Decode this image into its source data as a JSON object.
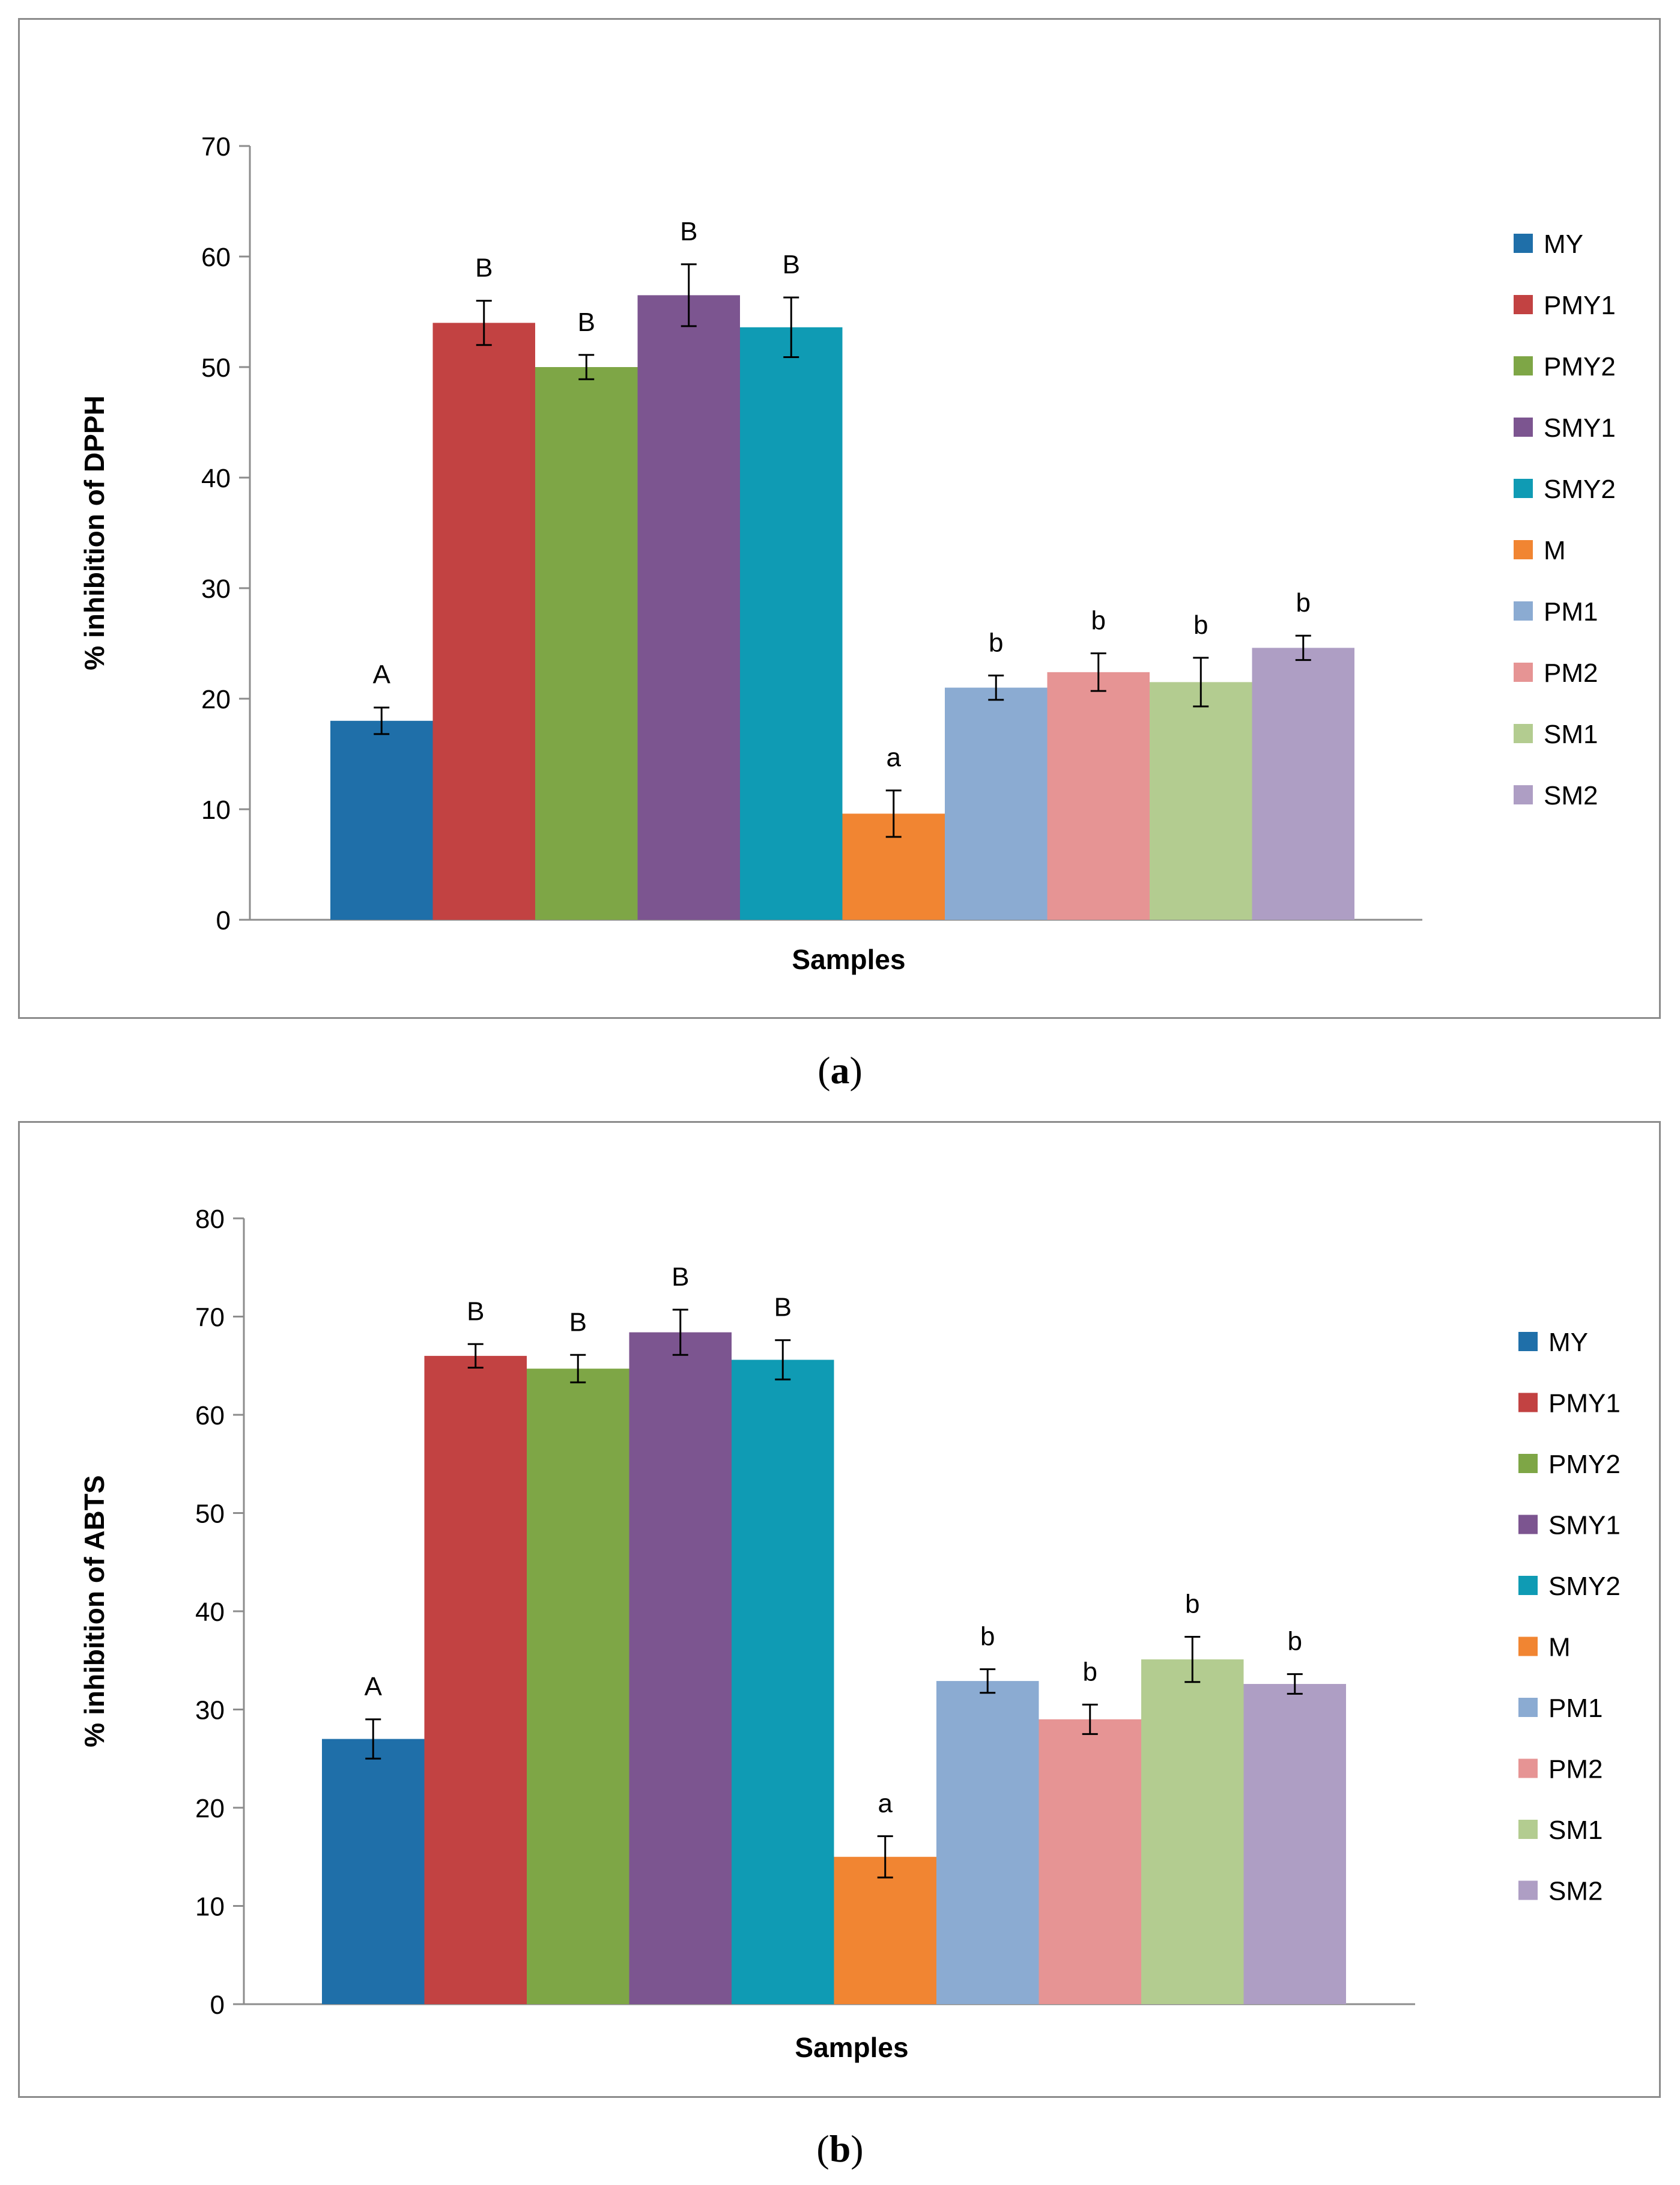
{
  "captions": [
    {
      "open": "(",
      "letter": "a",
      "close": ")"
    },
    {
      "open": "(",
      "letter": "b",
      "close": ")"
    }
  ],
  "chart_data": [
    {
      "type": "bar",
      "title": "",
      "xlabel": "Samples",
      "ylabel": "% inhibition of DPPH",
      "ylim": [
        0,
        70
      ],
      "yticks": [
        0,
        10,
        20,
        30,
        40,
        50,
        60,
        70
      ],
      "grid": false,
      "legend_position": "right",
      "categories": [
        "MY",
        "PMY1",
        "PMY2",
        "SMY1",
        "SMY2",
        "M",
        "PM1",
        "PM2",
        "SM1",
        "SM2"
      ],
      "colors": [
        "#1f6fa9",
        "#c24242",
        "#7ea646",
        "#7c5590",
        "#0f9bb4",
        "#f18532",
        "#8babd2",
        "#e69494",
        "#b3cc90",
        "#ae9ec4"
      ],
      "values": [
        18.0,
        54.0,
        50.0,
        56.5,
        53.6,
        9.6,
        21.0,
        22.4,
        21.5,
        24.6
      ],
      "errors": [
        1.2,
        2.0,
        1.1,
        2.8,
        2.7,
        2.1,
        1.1,
        1.7,
        2.2,
        1.1
      ],
      "labels": [
        "A",
        "B",
        "B",
        "B",
        "B",
        "a",
        "b",
        "b",
        "b",
        "b"
      ]
    },
    {
      "type": "bar",
      "title": "",
      "xlabel": "Samples",
      "ylabel": "% inhibition of ABTS",
      "ylim": [
        0,
        80
      ],
      "yticks": [
        0,
        10,
        20,
        30,
        40,
        50,
        60,
        70,
        80
      ],
      "grid": false,
      "legend_position": "right",
      "categories": [
        "MY",
        "PMY1",
        "PMY2",
        "SMY1",
        "SMY2",
        "M",
        "PM1",
        "PM2",
        "SM1",
        "SM2"
      ],
      "colors": [
        "#1f6fa9",
        "#c24242",
        "#7ea646",
        "#7c5590",
        "#0f9bb4",
        "#f18532",
        "#8babd2",
        "#e69494",
        "#b3cc90",
        "#ae9ec4"
      ],
      "values": [
        27.0,
        66.0,
        64.7,
        68.4,
        65.6,
        15.0,
        32.9,
        29.0,
        35.1,
        32.6
      ],
      "errors": [
        2.0,
        1.2,
        1.4,
        2.3,
        2.0,
        2.1,
        1.2,
        1.5,
        2.3,
        1.0
      ],
      "labels": [
        "A",
        "B",
        "B",
        "B",
        "B",
        "a",
        "b",
        "b",
        "b",
        "b"
      ]
    }
  ]
}
